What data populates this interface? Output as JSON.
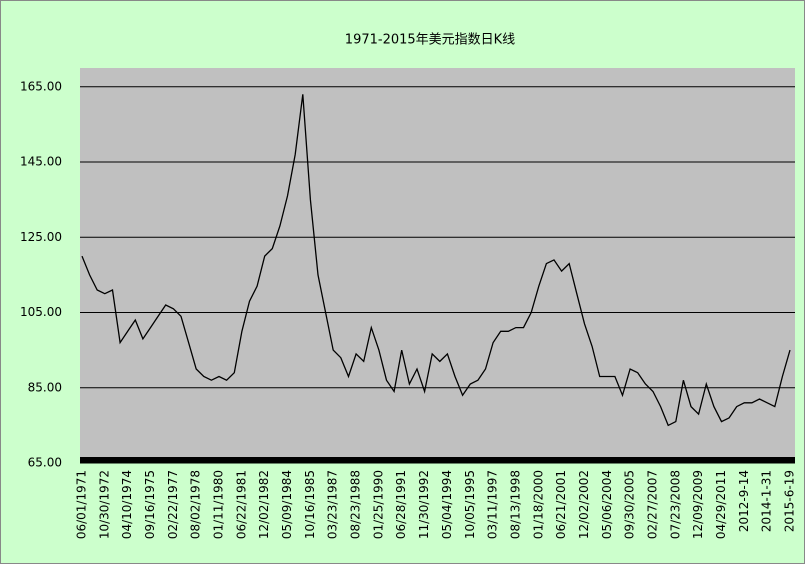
{
  "chart_data": {
    "type": "line",
    "title": "1971-2015年美元指数日K线",
    "categories": [
      "06/01/1971",
      null,
      null,
      "10/30/1972",
      null,
      null,
      "04/10/1974",
      null,
      null,
      "09/16/1975",
      null,
      null,
      "02/22/1977",
      null,
      null,
      "08/02/1978",
      null,
      null,
      "01/11/1980",
      null,
      null,
      "06/22/1981",
      null,
      null,
      "12/02/1982",
      null,
      null,
      "05/09/1984",
      null,
      null,
      "10/16/1985",
      null,
      null,
      "03/23/1987",
      null,
      null,
      "08/23/1988",
      null,
      null,
      "01/25/1990",
      null,
      null,
      "06/28/1991",
      null,
      null,
      "11/30/1992",
      null,
      null,
      "05/04/1994",
      null,
      null,
      "10/05/1995",
      null,
      null,
      "03/11/1997",
      null,
      null,
      "08/13/1998",
      null,
      null,
      "01/18/2000",
      null,
      null,
      "06/21/2001",
      null,
      null,
      "12/02/2002",
      null,
      null,
      "05/06/2004",
      null,
      null,
      "09/30/2005",
      null,
      null,
      "02/27/2007",
      null,
      null,
      "07/23/2008",
      null,
      null,
      "12/09/2009",
      null,
      null,
      "04/29/2011",
      null,
      null,
      "2012-9-14",
      null,
      null,
      "2014-1-31",
      null,
      null,
      "2015-6-19"
    ],
    "values": [
      120,
      115,
      111,
      110,
      111,
      97,
      100,
      103,
      98,
      101,
      104,
      107,
      106,
      104,
      97,
      90,
      88,
      87,
      88,
      87,
      89,
      100,
      108,
      112,
      120,
      122,
      128,
      136,
      147,
      163,
      135,
      115,
      105,
      95,
      93,
      88,
      94,
      92,
      101,
      95,
      87,
      84,
      95,
      86,
      90,
      84,
      94,
      92,
      94,
      88,
      83,
      86,
      87,
      90,
      97,
      100,
      100,
      101,
      101,
      105,
      112,
      118,
      119,
      116,
      118,
      110,
      102,
      96,
      88,
      88,
      88,
      83,
      90,
      89,
      86,
      84,
      80,
      75,
      76,
      87,
      80,
      78,
      86,
      80,
      76,
      77,
      80,
      81,
      81,
      82,
      81,
      80,
      88,
      95
    ],
    "color": "#000000",
    "ylim": [
      65,
      170
    ],
    "yticks": [
      {
        "value": 65,
        "label": "65.00"
      },
      {
        "value": 85,
        "label": "85.00"
      },
      {
        "value": 105,
        "label": "105.00"
      },
      {
        "value": 125,
        "label": "125.00"
      },
      {
        "value": 145,
        "label": "145.00"
      },
      {
        "value": 165,
        "label": "165.00"
      }
    ],
    "grid": true
  }
}
